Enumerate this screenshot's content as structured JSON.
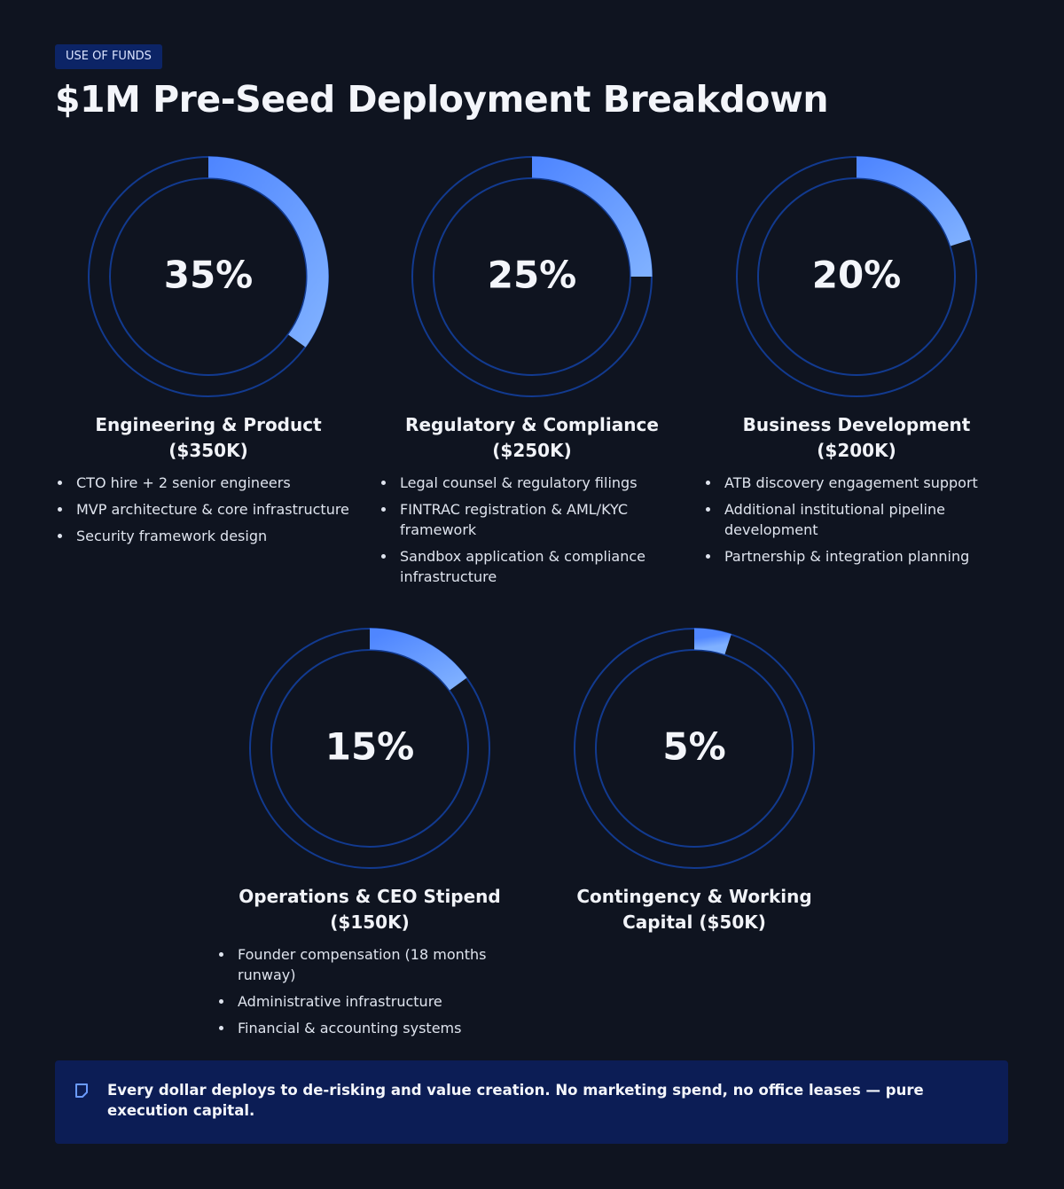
{
  "header": {
    "tag": "USE OF FUNDS",
    "title": "$1M Pre-Seed Deployment Breakdown"
  },
  "chart_data": [
    {
      "type": "donut",
      "title": "Engineering & Product ($350K)",
      "values": [
        35
      ],
      "value_labels": [
        "35%"
      ],
      "ylim": [
        0,
        100
      ],
      "color": "#4f86ff",
      "items": [
        "CTO hire + 2 senior engineers",
        "MVP architecture & core infrastructure",
        "Security framework design"
      ]
    },
    {
      "type": "donut",
      "title": "Regulatory & Compliance ($250K)",
      "values": [
        25
      ],
      "value_labels": [
        "25%"
      ],
      "ylim": [
        0,
        100
      ],
      "color": "#4f86ff",
      "items": [
        "Legal counsel & regulatory filings",
        "FINTRAC registration & AML/KYC framework",
        "Sandbox application & compliance infrastructure"
      ]
    },
    {
      "type": "donut",
      "title": "Business Development ($200K)",
      "values": [
        20
      ],
      "value_labels": [
        "20%"
      ],
      "ylim": [
        0,
        100
      ],
      "color": "#4f86ff",
      "items": [
        "ATB discovery engagement support",
        "Additional institutional pipeline development",
        "Partnership & integration planning"
      ]
    },
    {
      "type": "donut",
      "title": "Operations & CEO Stipend ($150K)",
      "values": [
        15
      ],
      "value_labels": [
        "15%"
      ],
      "ylim": [
        0,
        100
      ],
      "color": "#4f86ff",
      "items": [
        "Founder compensation (18 months runway)",
        "Administrative infrastructure",
        "Financial & accounting systems"
      ]
    },
    {
      "type": "donut",
      "title": "Contingency & Working Capital ($50K)",
      "values": [
        5
      ],
      "value_labels": [
        "5%"
      ],
      "ylim": [
        0,
        100
      ],
      "color": "#4f86ff",
      "items": []
    }
  ],
  "note": "Every dollar deploys to de-risking and value creation. No marketing spend, no office leases — pure execution capital."
}
